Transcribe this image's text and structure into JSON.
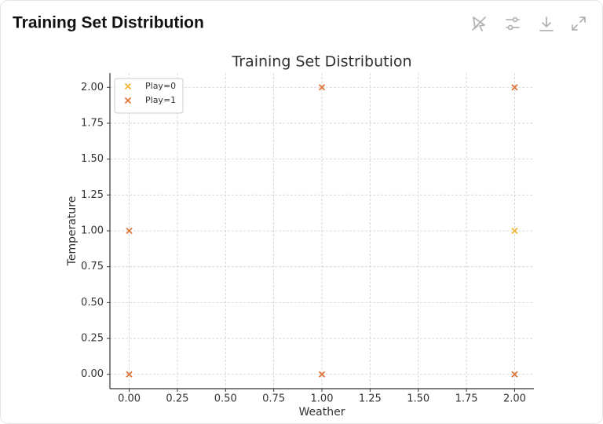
{
  "header": {
    "title": "Training Set Distribution"
  },
  "chart_data": {
    "type": "scatter",
    "title": "Training Set Distribution",
    "xlabel": "Weather",
    "ylabel": "Temperature",
    "series": [
      {
        "name": "Play=0",
        "color": "#f2b53a",
        "x": [
          2
        ],
        "values": [
          1
        ]
      },
      {
        "name": "Play=1",
        "color": "#e0763a",
        "x": [
          0,
          1,
          2,
          0,
          1,
          2
        ],
        "values": [
          0,
          0,
          0,
          1,
          2,
          2
        ]
      }
    ],
    "xlim": [
      -0.1,
      2.1
    ],
    "ylim": [
      -0.1,
      2.1
    ],
    "xticks": [
      {
        "value": 0,
        "label": "0.00"
      },
      {
        "value": 0.25,
        "label": "0.25"
      },
      {
        "value": 0.5,
        "label": "0.50"
      },
      {
        "value": 0.75,
        "label": "0.75"
      },
      {
        "value": 1,
        "label": "1.00"
      },
      {
        "value": 1.25,
        "label": "1.25"
      },
      {
        "value": 1.5,
        "label": "1.50"
      },
      {
        "value": 1.75,
        "label": "1.75"
      },
      {
        "value": 2,
        "label": "2.00"
      }
    ],
    "yticks": [
      {
        "value": 0,
        "label": "0.00"
      },
      {
        "value": 0.25,
        "label": "0.25"
      },
      {
        "value": 0.5,
        "label": "0.50"
      },
      {
        "value": 0.75,
        "label": "0.75"
      },
      {
        "value": 1,
        "label": "1.00"
      },
      {
        "value": 1.25,
        "label": "1.25"
      },
      {
        "value": 1.5,
        "label": "1.50"
      },
      {
        "value": 1.75,
        "label": "1.75"
      },
      {
        "value": 2,
        "label": "2.00"
      }
    ],
    "grid": true,
    "legend": "upper-left"
  }
}
